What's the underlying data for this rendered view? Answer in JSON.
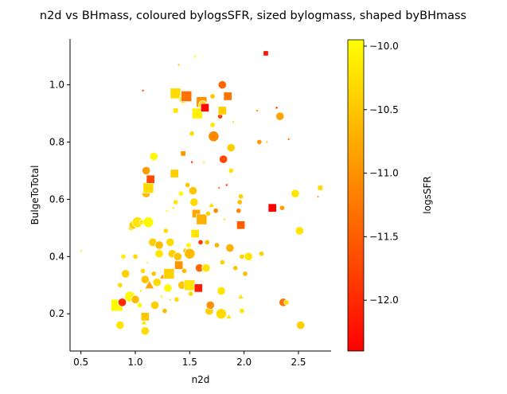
{
  "chart_data": {
    "type": "scatter",
    "title": "n2d vs BHmass, coloured bylogsSFR, sized bylogmass, shaped byBHmass",
    "xlabel": "n2d",
    "ylabel": "BulgeToTotal",
    "xlim": [
      0.4,
      2.8
    ],
    "ylim": [
      0.07,
      1.16
    ],
    "xticks": [
      0.5,
      1.0,
      1.5,
      2.0,
      2.5
    ],
    "xtick_labels": [
      "0.5",
      "1.0",
      "1.5",
      "2.0",
      "2.5"
    ],
    "yticks": [
      0.2,
      0.4,
      0.6,
      0.8,
      1.0
    ],
    "ytick_labels": [
      "0.2",
      "0.4",
      "0.6",
      "0.8",
      "1.0"
    ],
    "grid": false,
    "colorbar": {
      "label": "logsSFR",
      "colormap": "autumn",
      "range": [
        -12.4,
        -9.95
      ],
      "ticks": [
        -12.0,
        -11.5,
        -11.0,
        -10.5,
        -10.0
      ],
      "tick_labels": [
        "−12.0",
        "−11.5",
        "−11.0",
        "−10.5",
        "−10.0"
      ],
      "color_low": "#ff0000",
      "color_high": "#ffff00"
    },
    "points": [
      {
        "x": 0.5,
        "y": 0.42,
        "c": -10.2,
        "s": "xs",
        "m": "triangle"
      },
      {
        "x": 0.83,
        "y": 0.23,
        "c": -10.0,
        "s": "xl",
        "m": "square"
      },
      {
        "x": 0.86,
        "y": 0.3,
        "c": -10.3,
        "s": "sm",
        "m": "circle"
      },
      {
        "x": 0.86,
        "y": 0.16,
        "c": -10.2,
        "s": "md",
        "m": "circle"
      },
      {
        "x": 0.88,
        "y": 0.24,
        "c": -12.0,
        "s": "md",
        "m": "circle"
      },
      {
        "x": 0.89,
        "y": 0.4,
        "c": -10.1,
        "s": "sm",
        "m": "circle"
      },
      {
        "x": 0.91,
        "y": 0.34,
        "c": -10.4,
        "s": "md",
        "m": "circle"
      },
      {
        "x": 0.93,
        "y": 0.27,
        "c": -10.3,
        "s": "xs",
        "m": "circle"
      },
      {
        "x": 0.95,
        "y": 0.26,
        "c": -10.0,
        "s": "lg",
        "m": "circle"
      },
      {
        "x": 0.96,
        "y": 0.5,
        "c": -10.2,
        "s": "sm",
        "m": "circle"
      },
      {
        "x": 0.98,
        "y": 0.51,
        "c": -10.4,
        "s": "md",
        "m": "circle"
      },
      {
        "x": 1.0,
        "y": 0.25,
        "c": -10.6,
        "s": "md",
        "m": "circle"
      },
      {
        "x": 1.0,
        "y": 0.4,
        "c": -10.3,
        "s": "sm",
        "m": "circle"
      },
      {
        "x": 1.02,
        "y": 0.52,
        "c": -10.2,
        "s": "lg",
        "m": "circle"
      },
      {
        "x": 1.04,
        "y": 0.23,
        "c": -10.0,
        "s": "sm",
        "m": "circle"
      },
      {
        "x": 1.05,
        "y": 0.28,
        "c": -10.2,
        "s": "xs",
        "m": "circle"
      },
      {
        "x": 1.06,
        "y": 0.52,
        "c": -10.2,
        "s": "sm",
        "m": "circle"
      },
      {
        "x": 1.07,
        "y": 0.35,
        "c": -10.3,
        "s": "sm",
        "m": "circle"
      },
      {
        "x": 1.07,
        "y": 0.98,
        "c": -11.6,
        "s": "xs",
        "m": "circle"
      },
      {
        "x": 1.08,
        "y": 0.17,
        "c": -10.2,
        "s": "sm",
        "m": "triangle"
      },
      {
        "x": 1.09,
        "y": 0.14,
        "c": -10.3,
        "s": "md",
        "m": "circle"
      },
      {
        "x": 1.09,
        "y": 0.32,
        "c": -10.5,
        "s": "md",
        "m": "circle"
      },
      {
        "x": 1.09,
        "y": 0.19,
        "c": -10.5,
        "s": "md",
        "m": "square"
      },
      {
        "x": 1.1,
        "y": 0.62,
        "c": -10.6,
        "s": "md",
        "m": "circle"
      },
      {
        "x": 1.1,
        "y": 0.7,
        "c": -10.9,
        "s": "md",
        "m": "circle"
      },
      {
        "x": 1.11,
        "y": 0.38,
        "c": -10.1,
        "s": "xs",
        "m": "triangle"
      },
      {
        "x": 1.12,
        "y": 0.64,
        "c": -10.3,
        "s": "lg",
        "m": "square"
      },
      {
        "x": 1.12,
        "y": 0.52,
        "c": -10.0,
        "s": "lg",
        "m": "circle"
      },
      {
        "x": 1.13,
        "y": 0.3,
        "c": -10.8,
        "s": "md",
        "m": "triangle"
      },
      {
        "x": 1.14,
        "y": 0.67,
        "c": -11.7,
        "s": "md",
        "m": "square"
      },
      {
        "x": 1.16,
        "y": 0.45,
        "c": -10.4,
        "s": "md",
        "m": "circle"
      },
      {
        "x": 1.17,
        "y": 0.75,
        "c": -10.0,
        "s": "md",
        "m": "circle"
      },
      {
        "x": 1.17,
        "y": 0.34,
        "c": -10.5,
        "s": "sm",
        "m": "circle"
      },
      {
        "x": 1.18,
        "y": 0.23,
        "c": -10.4,
        "s": "md",
        "m": "circle"
      },
      {
        "x": 1.2,
        "y": 0.31,
        "c": -10.3,
        "s": "md",
        "m": "circle"
      },
      {
        "x": 1.22,
        "y": 0.41,
        "c": -10.2,
        "s": "md",
        "m": "circle"
      },
      {
        "x": 1.22,
        "y": 0.44,
        "c": -10.6,
        "s": "md",
        "m": "circle"
      },
      {
        "x": 1.24,
        "y": 0.26,
        "c": -10.2,
        "s": "xs",
        "m": "circle"
      },
      {
        "x": 1.25,
        "y": 0.33,
        "c": -10.9,
        "s": "sm",
        "m": "triangle"
      },
      {
        "x": 1.27,
        "y": 0.21,
        "c": -10.6,
        "s": "sm",
        "m": "circle"
      },
      {
        "x": 1.28,
        "y": 0.49,
        "c": -10.3,
        "s": "sm",
        "m": "circle"
      },
      {
        "x": 1.29,
        "y": 0.56,
        "c": -10.0,
        "s": "xs",
        "m": "circle"
      },
      {
        "x": 1.3,
        "y": 0.29,
        "c": -10.0,
        "s": "md",
        "m": "circle"
      },
      {
        "x": 1.31,
        "y": 0.34,
        "c": -10.4,
        "s": "lg",
        "m": "square"
      },
      {
        "x": 1.32,
        "y": 0.45,
        "c": -10.3,
        "s": "md",
        "m": "circle"
      },
      {
        "x": 1.32,
        "y": 0.25,
        "c": -10.5,
        "s": "xs",
        "m": "triangle"
      },
      {
        "x": 1.34,
        "y": 0.41,
        "c": -10.4,
        "s": "md",
        "m": "circle"
      },
      {
        "x": 1.35,
        "y": 0.57,
        "c": -10.2,
        "s": "xs",
        "m": "circle"
      },
      {
        "x": 1.36,
        "y": 0.69,
        "c": -10.4,
        "s": "md",
        "m": "square"
      },
      {
        "x": 1.37,
        "y": 0.59,
        "c": -10.2,
        "s": "sm",
        "m": "circle"
      },
      {
        "x": 1.37,
        "y": 0.97,
        "c": -10.3,
        "s": "lg",
        "m": "square"
      },
      {
        "x": 1.37,
        "y": 0.91,
        "c": -10.2,
        "s": "sm",
        "m": "square"
      },
      {
        "x": 1.38,
        "y": 0.25,
        "c": -10.3,
        "s": "sm",
        "m": "circle"
      },
      {
        "x": 1.39,
        "y": 0.4,
        "c": -10.5,
        "s": "md",
        "m": "circle"
      },
      {
        "x": 1.4,
        "y": 0.37,
        "c": -11.0,
        "s": "md",
        "m": "square"
      },
      {
        "x": 1.4,
        "y": 1.07,
        "c": -10.5,
        "s": "xs",
        "m": "circle"
      },
      {
        "x": 1.42,
        "y": 0.62,
        "c": -10.0,
        "s": "sm",
        "m": "circle"
      },
      {
        "x": 1.43,
        "y": 0.3,
        "c": -10.5,
        "s": "md",
        "m": "circle"
      },
      {
        "x": 1.44,
        "y": 0.95,
        "c": -10.2,
        "s": "md",
        "m": "circle"
      },
      {
        "x": 1.44,
        "y": 0.76,
        "c": -11.0,
        "s": "sm",
        "m": "square"
      },
      {
        "x": 1.45,
        "y": 0.35,
        "c": -10.6,
        "s": "sm",
        "m": "circle"
      },
      {
        "x": 1.46,
        "y": 0.42,
        "c": -10.5,
        "s": "sm",
        "m": "circle"
      },
      {
        "x": 1.47,
        "y": 0.96,
        "c": -11.3,
        "s": "lg",
        "m": "square"
      },
      {
        "x": 1.48,
        "y": 0.65,
        "c": -10.5,
        "s": "sm",
        "m": "circle"
      },
      {
        "x": 1.49,
        "y": 0.44,
        "c": -10.0,
        "s": "sm",
        "m": "circle"
      },
      {
        "x": 1.5,
        "y": 0.41,
        "c": -10.6,
        "s": "lg",
        "m": "circle"
      },
      {
        "x": 1.5,
        "y": 0.3,
        "c": -10.2,
        "s": "lg",
        "m": "square"
      },
      {
        "x": 1.51,
        "y": 0.27,
        "c": -10.3,
        "s": "sm",
        "m": "circle"
      },
      {
        "x": 1.52,
        "y": 0.83,
        "c": -10.3,
        "s": "sm",
        "m": "circle"
      },
      {
        "x": 1.52,
        "y": 0.73,
        "c": -12.1,
        "s": "xs",
        "m": "circle"
      },
      {
        "x": 1.53,
        "y": 0.63,
        "c": -10.5,
        "s": "md",
        "m": "circle"
      },
      {
        "x": 1.54,
        "y": 0.59,
        "c": -10.3,
        "s": "md",
        "m": "circle"
      },
      {
        "x": 1.55,
        "y": 0.48,
        "c": -10.2,
        "s": "md",
        "m": "square"
      },
      {
        "x": 1.55,
        "y": 1.1,
        "c": -10.0,
        "s": "xs",
        "m": "circle"
      },
      {
        "x": 1.56,
        "y": 0.55,
        "c": -10.8,
        "s": "md",
        "m": "square"
      },
      {
        "x": 1.57,
        "y": 0.9,
        "c": -10.1,
        "s": "lg",
        "m": "square"
      },
      {
        "x": 1.58,
        "y": 0.29,
        "c": -12.1,
        "s": "md",
        "m": "square"
      },
      {
        "x": 1.59,
        "y": 0.36,
        "c": -11.4,
        "s": "md",
        "m": "circle"
      },
      {
        "x": 1.6,
        "y": 0.45,
        "c": -11.8,
        "s": "sm",
        "m": "circle"
      },
      {
        "x": 1.61,
        "y": 0.53,
        "c": -10.7,
        "s": "lg",
        "m": "square"
      },
      {
        "x": 1.61,
        "y": 0.94,
        "c": -11.0,
        "s": "lg",
        "m": "square"
      },
      {
        "x": 1.62,
        "y": 0.93,
        "c": -10.3,
        "s": "md",
        "m": "circle"
      },
      {
        "x": 1.63,
        "y": 0.73,
        "c": -10.1,
        "s": "xs",
        "m": "circle"
      },
      {
        "x": 1.64,
        "y": 0.92,
        "c": -12.3,
        "s": "md",
        "m": "square"
      },
      {
        "x": 1.65,
        "y": 0.36,
        "c": -10.2,
        "s": "md",
        "m": "circle"
      },
      {
        "x": 1.66,
        "y": 0.45,
        "c": -10.6,
        "s": "sm",
        "m": "circle"
      },
      {
        "x": 1.67,
        "y": 0.55,
        "c": -10.4,
        "s": "sm",
        "m": "circle"
      },
      {
        "x": 1.68,
        "y": 0.21,
        "c": -10.4,
        "s": "md",
        "m": "circle"
      },
      {
        "x": 1.69,
        "y": 0.23,
        "c": -11.0,
        "s": "md",
        "m": "circle"
      },
      {
        "x": 1.7,
        "y": 0.58,
        "c": -10.3,
        "s": "sm",
        "m": "triangle"
      },
      {
        "x": 1.7,
        "y": 0.81,
        "c": -10.3,
        "s": "xs",
        "m": "triangle"
      },
      {
        "x": 1.71,
        "y": 0.86,
        "c": -10.2,
        "s": "sm",
        "m": "circle"
      },
      {
        "x": 1.71,
        "y": 0.96,
        "c": -10.5,
        "s": "sm",
        "m": "circle"
      },
      {
        "x": 1.72,
        "y": 0.82,
        "c": -11.1,
        "s": "lg",
        "m": "circle"
      },
      {
        "x": 1.74,
        "y": 0.56,
        "c": -11.1,
        "s": "sm",
        "m": "circle"
      },
      {
        "x": 1.75,
        "y": 0.44,
        "c": -10.7,
        "s": "sm",
        "m": "circle"
      },
      {
        "x": 1.77,
        "y": 0.64,
        "c": -11.2,
        "s": "xs",
        "m": "circle"
      },
      {
        "x": 1.78,
        "y": 0.89,
        "c": -11.8,
        "s": "sm",
        "m": "circle"
      },
      {
        "x": 1.79,
        "y": 0.2,
        "c": -10.3,
        "s": "lg",
        "m": "circle"
      },
      {
        "x": 1.79,
        "y": 0.28,
        "c": -10.2,
        "s": "md",
        "m": "circle"
      },
      {
        "x": 1.8,
        "y": 0.91,
        "c": -10.4,
        "s": "md",
        "m": "square"
      },
      {
        "x": 1.8,
        "y": 1.0,
        "c": -11.4,
        "s": "md",
        "m": "circle"
      },
      {
        "x": 1.8,
        "y": 0.38,
        "c": -10.4,
        "s": "sm",
        "m": "circle"
      },
      {
        "x": 1.81,
        "y": 0.74,
        "c": -11.7,
        "s": "md",
        "m": "circle"
      },
      {
        "x": 1.82,
        "y": 0.53,
        "c": -10.2,
        "s": "xs",
        "m": "circle"
      },
      {
        "x": 1.84,
        "y": 0.65,
        "c": -12.0,
        "s": "xs",
        "m": "circle"
      },
      {
        "x": 1.85,
        "y": 0.96,
        "c": -11.3,
        "s": "md",
        "m": "square"
      },
      {
        "x": 1.86,
        "y": 0.19,
        "c": -10.2,
        "s": "sm",
        "m": "triangle"
      },
      {
        "x": 1.87,
        "y": 0.43,
        "c": -10.7,
        "s": "md",
        "m": "circle"
      },
      {
        "x": 1.88,
        "y": 0.7,
        "c": -10.2,
        "s": "sm",
        "m": "circle"
      },
      {
        "x": 1.88,
        "y": 0.78,
        "c": -10.4,
        "s": "md",
        "m": "circle"
      },
      {
        "x": 1.9,
        "y": 0.87,
        "c": -10.2,
        "s": "xs",
        "m": "circle"
      },
      {
        "x": 1.92,
        "y": 0.36,
        "c": -10.5,
        "s": "sm",
        "m": "circle"
      },
      {
        "x": 1.95,
        "y": 0.56,
        "c": -11.1,
        "s": "sm",
        "m": "circle"
      },
      {
        "x": 1.96,
        "y": 0.59,
        "c": -10.6,
        "s": "sm",
        "m": "circle"
      },
      {
        "x": 1.97,
        "y": 0.61,
        "c": -10.4,
        "s": "sm",
        "m": "circle"
      },
      {
        "x": 1.97,
        "y": 0.26,
        "c": -10.2,
        "s": "sm",
        "m": "triangle"
      },
      {
        "x": 1.97,
        "y": 0.51,
        "c": -11.5,
        "s": "md",
        "m": "square"
      },
      {
        "x": 1.98,
        "y": 0.4,
        "c": -10.4,
        "s": "sm",
        "m": "circle"
      },
      {
        "x": 1.98,
        "y": 0.21,
        "c": -10.2,
        "s": "sm",
        "m": "circle"
      },
      {
        "x": 2.01,
        "y": 0.34,
        "c": -10.6,
        "s": "sm",
        "m": "circle"
      },
      {
        "x": 2.04,
        "y": 0.4,
        "c": -10.2,
        "s": "md",
        "m": "circle"
      },
      {
        "x": 2.12,
        "y": 0.91,
        "c": -10.9,
        "s": "xs",
        "m": "circle"
      },
      {
        "x": 2.14,
        "y": 0.8,
        "c": -10.9,
        "s": "sm",
        "m": "circle"
      },
      {
        "x": 2.16,
        "y": 0.41,
        "c": -10.4,
        "s": "sm",
        "m": "circle"
      },
      {
        "x": 2.2,
        "y": 1.11,
        "c": -12.2,
        "s": "sm",
        "m": "square"
      },
      {
        "x": 2.21,
        "y": 0.8,
        "c": -10.3,
        "s": "xs",
        "m": "circle"
      },
      {
        "x": 2.26,
        "y": 0.57,
        "c": -12.4,
        "s": "md",
        "m": "square"
      },
      {
        "x": 2.3,
        "y": 0.92,
        "c": -12.1,
        "s": "xs",
        "m": "circle"
      },
      {
        "x": 2.33,
        "y": 0.89,
        "c": -10.8,
        "s": "md",
        "m": "circle"
      },
      {
        "x": 2.35,
        "y": 0.57,
        "c": -10.9,
        "s": "sm",
        "m": "circle"
      },
      {
        "x": 2.36,
        "y": 0.24,
        "c": -11.3,
        "s": "md",
        "m": "circle"
      },
      {
        "x": 2.39,
        "y": 0.24,
        "c": -10.3,
        "s": "sm",
        "m": "circle"
      },
      {
        "x": 2.41,
        "y": 0.81,
        "c": -11.3,
        "s": "xs",
        "m": "circle"
      },
      {
        "x": 2.47,
        "y": 0.62,
        "c": -10.2,
        "s": "md",
        "m": "circle"
      },
      {
        "x": 2.51,
        "y": 0.49,
        "c": -10.2,
        "s": "md",
        "m": "circle"
      },
      {
        "x": 2.52,
        "y": 0.16,
        "c": -10.4,
        "s": "md",
        "m": "circle"
      },
      {
        "x": 2.68,
        "y": 0.61,
        "c": -11.2,
        "s": "xs",
        "m": "triangle"
      },
      {
        "x": 2.7,
        "y": 0.64,
        "c": -10.3,
        "s": "sm",
        "m": "square"
      }
    ]
  }
}
